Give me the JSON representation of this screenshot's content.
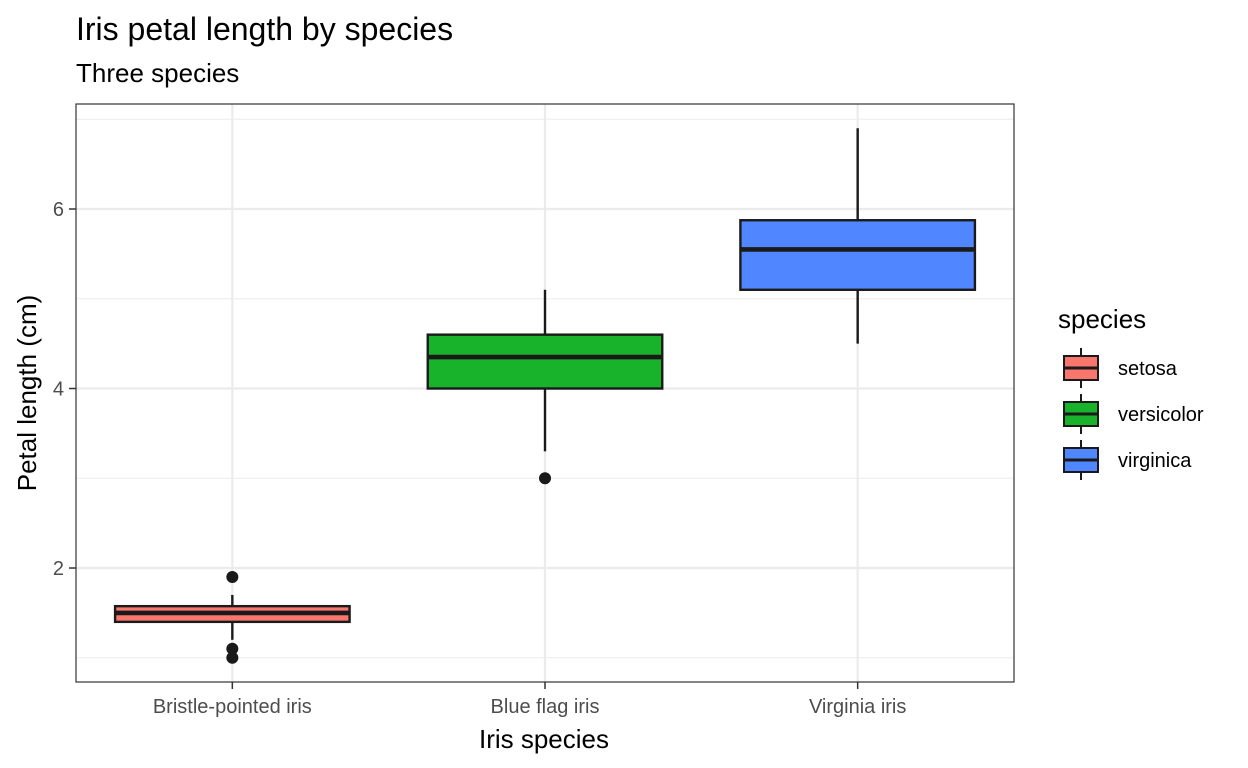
{
  "chart_data": {
    "type": "box",
    "title": "Iris petal length by species",
    "subtitle": "Three species",
    "xlabel": "Iris species",
    "ylabel": "Petal length (cm)",
    "ylim": [
      0.73,
      7.17
    ],
    "yticks": [
      2,
      4,
      6
    ],
    "grid": true,
    "categories": [
      "Bristle-pointed iris",
      "Blue flag iris",
      "Virginia iris"
    ],
    "series": [
      {
        "min": 1.2,
        "q1": 1.4,
        "median": 1.5,
        "q3": 1.575,
        "max": 1.7,
        "outliers": [
          1.0,
          1.1,
          1.9
        ],
        "fill": "#f8766d"
      },
      {
        "min": 3.3,
        "q1": 4.0,
        "median": 4.35,
        "q3": 4.6,
        "max": 5.1,
        "outliers": [
          3.0
        ],
        "fill": "#19b22b"
      },
      {
        "min": 4.5,
        "q1": 5.1,
        "median": 5.55,
        "q3": 5.875,
        "max": 6.9,
        "outliers": [],
        "fill": "#5086ff"
      }
    ],
    "legend": {
      "title": "species",
      "placement": "right",
      "entries": [
        {
          "label": "setosa",
          "fill": "#f8766d"
        },
        {
          "label": "versicolor",
          "fill": "#19b22b"
        },
        {
          "label": "virginica",
          "fill": "#5086ff"
        }
      ]
    }
  }
}
